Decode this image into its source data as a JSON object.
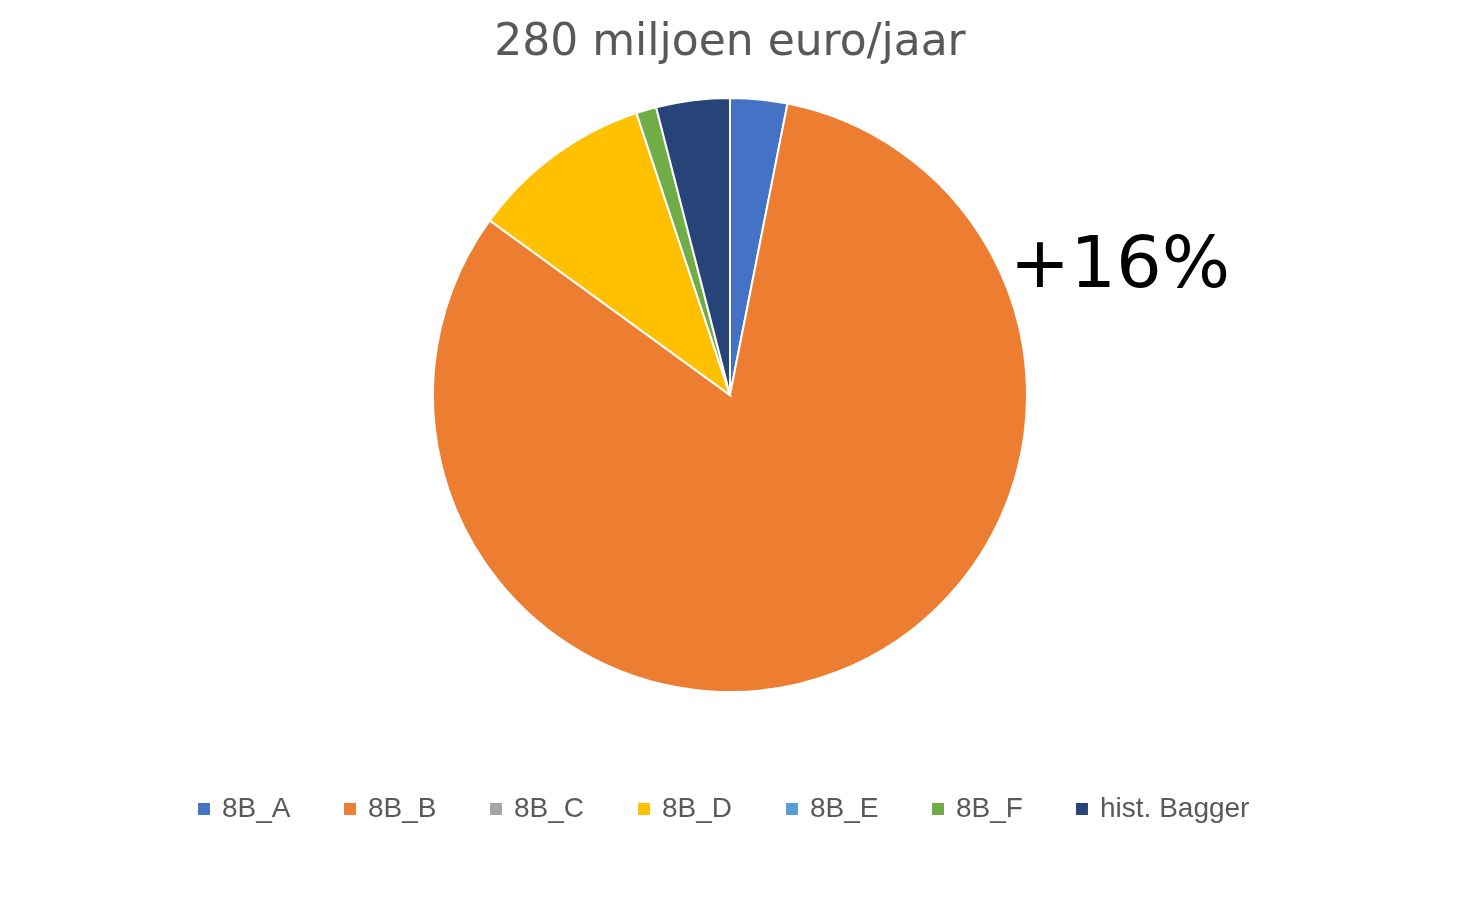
{
  "chart_data": {
    "type": "pie",
    "title": "280 miljoen euro/jaar",
    "categories": [
      "8B_A",
      "8B_B",
      "8B_C",
      "8B_D",
      "8B_E",
      "8B_F",
      "hist. Bagger"
    ],
    "values": [
      3.1,
      81.9,
      0,
      9.9,
      0,
      1.1,
      4.0
    ],
    "colors": [
      "#4472c4",
      "#ed7d31",
      "#a5a5a5",
      "#ffc000",
      "#5b9bd5",
      "#70ad47",
      "#264478"
    ],
    "legend": "bottom",
    "annotations": [
      "+16%"
    ]
  }
}
